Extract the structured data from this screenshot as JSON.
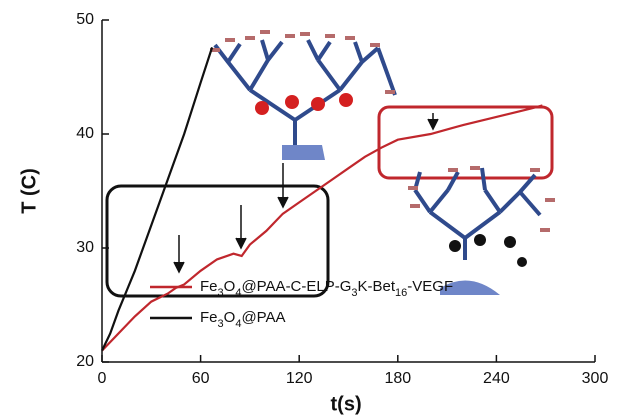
{
  "chart_data": {
    "type": "line",
    "xlabel": "t(s)",
    "ylabel": "T (C)",
    "xlim": [
      0,
      300
    ],
    "ylim": [
      20,
      50
    ],
    "xticks": [
      0,
      60,
      120,
      180,
      240,
      300
    ],
    "yticks": [
      20,
      30,
      40,
      50
    ],
    "legend": "lower right",
    "series": [
      {
        "name": "Fe3O4@PAA-C-ELP-G3K-Bet16-VEGF",
        "color": "#c0272d",
        "x": [
          0,
          10,
          20,
          30,
          40,
          45,
          50,
          60,
          70,
          80,
          85,
          90,
          100,
          110,
          120,
          130,
          140,
          150,
          160,
          170,
          180,
          200,
          220,
          240,
          260,
          268
        ],
        "values": [
          21,
          22.5,
          24,
          25.3,
          26,
          26.5,
          26.8,
          28,
          29,
          29.5,
          29.3,
          30.3,
          31.5,
          33,
          34,
          35,
          36,
          37,
          38,
          38.8,
          39.5,
          40,
          40.8,
          41.5,
          42.2,
          42.5
        ]
      },
      {
        "name": "Fe3O4@PAA",
        "color": "#111111",
        "x": [
          0,
          5,
          10,
          20,
          30,
          40,
          50,
          60,
          67
        ],
        "values": [
          21,
          22.5,
          24.5,
          28,
          32,
          36,
          40,
          44.5,
          47.6
        ]
      }
    ]
  }
}
